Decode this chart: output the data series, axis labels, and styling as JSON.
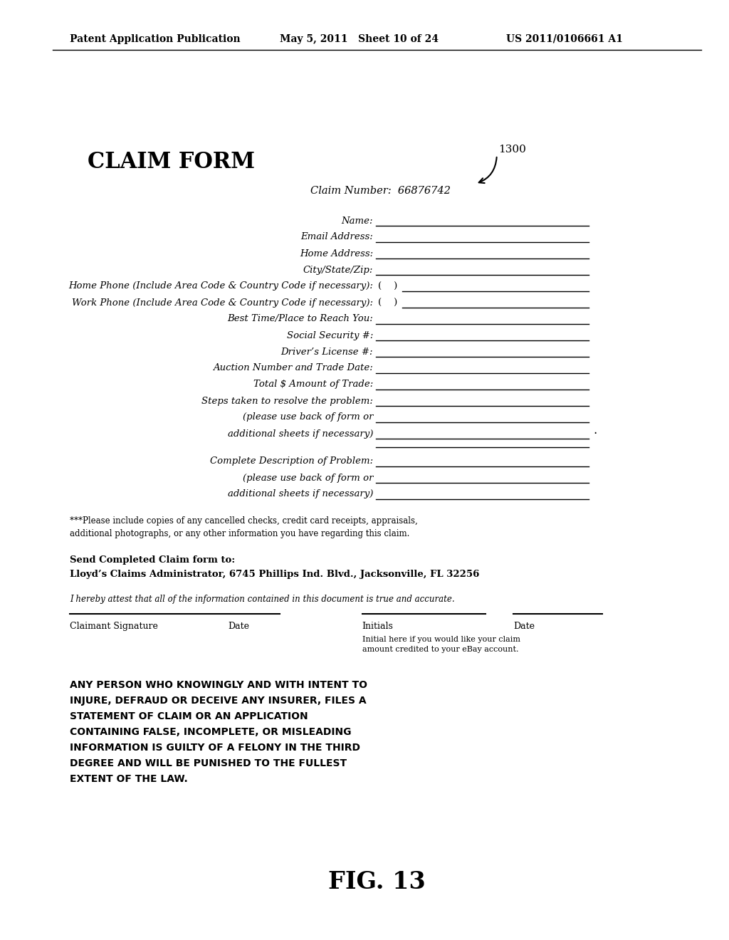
{
  "header_left": "Patent Application Publication",
  "header_mid": "May 5, 2011   Sheet 10 of 24",
  "header_right": "US 2011/0106661 A1",
  "title": "CLAIM FORM",
  "label_1300": "1300",
  "claim_number": "Claim Number:  66876742",
  "phone_fields": [
    "Home Phone (Include Area Code & Country Code if necessary):",
    "Work Phone (Include Area Code & Country Code if necessary):"
  ],
  "complete_desc": "Complete Description of Problem:",
  "note": "***Please include copies of any cancelled checks, credit card receipts, appraisals,\nadditional photographs, or any other information you have regarding this claim.",
  "send_to_line1": "Send Completed Claim form to:",
  "send_to_line2": "Lloyd’s Claims Administrator, 6745 Phillips Ind. Blvd., Jacksonville, FL 32256",
  "attest": "I hereby attest that all of the information contained in this document is true and accurate.",
  "sig_label": "Claimant Signature",
  "date_label": "Date",
  "initials_label": "Initials",
  "date_label2": "Date",
  "initial_note": "Initial here if you would like your claim\namount credited to your eBay account.",
  "warning_line1": "ANY PERSON WHO KNOWINGLY AND WITH INTENT TO",
  "warning_line2": "INJURE, DEFRAUD OR DECEIVE ANY INSURER, FILES A",
  "warning_line3": "STATEMENT OF CLAIM OR AN APPLICATION",
  "warning_line4": "CONTAINING FALSE, INCOMPLETE, OR MISLEADING",
  "warning_line5": "INFORMATION IS GUILTY OF A FELONY IN THE THIRD",
  "warning_line6": "DEGREE AND WILL BE PUNISHED TO THE FULLEST",
  "warning_line7": "EXTENT OF THE LAW.",
  "fig_label": "FIG. 13",
  "bg_color": "#ffffff",
  "text_color": "#000000"
}
